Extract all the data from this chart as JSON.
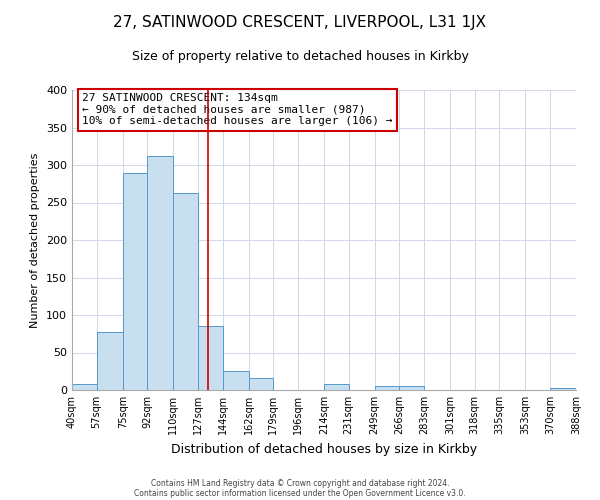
{
  "title": "27, SATINWOOD CRESCENT, LIVERPOOL, L31 1JX",
  "subtitle": "Size of property relative to detached houses in Kirkby",
  "xlabel": "Distribution of detached houses by size in Kirkby",
  "ylabel": "Number of detached properties",
  "bin_edges": [
    40,
    57,
    75,
    92,
    110,
    127,
    144,
    162,
    179,
    196,
    214,
    231,
    249,
    266,
    283,
    301,
    318,
    335,
    353,
    370,
    388
  ],
  "bar_heights": [
    8,
    77,
    290,
    312,
    263,
    85,
    25,
    16,
    0,
    0,
    8,
    0,
    5,
    5,
    0,
    0,
    0,
    0,
    0,
    3
  ],
  "bar_color": "#c8dff0",
  "bar_edge_color": "#5599cc",
  "vline_x": 134,
  "vline_color": "#cc0000",
  "annotation_line1": "27 SATINWOOD CRESCENT: 134sqm",
  "annotation_line2": "← 90% of detached houses are smaller (987)",
  "annotation_line3": "10% of semi-detached houses are larger (106) →",
  "box_edge_color": "#cc0000",
  "footnote1": "Contains HM Land Registry data © Crown copyright and database right 2024.",
  "footnote2": "Contains public sector information licensed under the Open Government Licence v3.0.",
  "ylim": [
    0,
    400
  ],
  "xlim": [
    40,
    388
  ],
  "tick_labels": [
    "40sqm",
    "57sqm",
    "75sqm",
    "92sqm",
    "110sqm",
    "127sqm",
    "144sqm",
    "162sqm",
    "179sqm",
    "196sqm",
    "214sqm",
    "231sqm",
    "249sqm",
    "266sqm",
    "283sqm",
    "301sqm",
    "318sqm",
    "335sqm",
    "353sqm",
    "370sqm",
    "388sqm"
  ],
  "background_color": "#ffffff",
  "grid_color": "#d0d8e8",
  "title_fontsize": 11,
  "subtitle_fontsize": 9,
  "ylabel_fontsize": 8,
  "xlabel_fontsize": 9,
  "ytick_fontsize": 8,
  "xtick_fontsize": 7
}
